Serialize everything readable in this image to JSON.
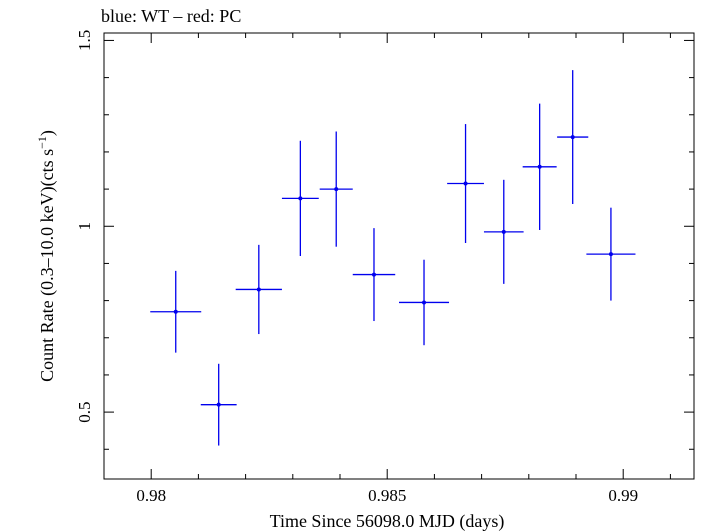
{
  "chart_data": {
    "type": "scatter",
    "title": "blue: WT – red: PC",
    "xlabel": "Time Since 56098.0 MJD (days)",
    "ylabel_main": "Count Rate (0.3–10.0 keV)(cts s",
    "ylabel_sup": "−1",
    "ylabel_close": ")",
    "xlim": [
      0.979,
      0.9915
    ],
    "ylim": [
      0.32,
      1.52
    ],
    "x_ticks": [
      0.98,
      0.985,
      0.99
    ],
    "x_tick_labels": [
      "0.98",
      "0.985",
      "0.99"
    ],
    "y_ticks": [
      0.5,
      1.0,
      1.5
    ],
    "y_tick_labels": [
      "0.5",
      "1",
      "1.5"
    ],
    "series": [
      {
        "color": "#0000ee",
        "points": [
          {
            "x": 0.98052,
            "xerr": 0.00054,
            "y": 0.77,
            "yerr": 0.11
          },
          {
            "x": 0.98143,
            "xerr": 0.00038,
            "y": 0.52,
            "yerr": 0.11
          },
          {
            "x": 0.98228,
            "xerr": 0.00049,
            "y": 0.83,
            "yerr": 0.12
          },
          {
            "x": 0.98316,
            "xerr": 0.00039,
            "y": 1.075,
            "yerr": 0.155
          },
          {
            "x": 0.98392,
            "xerr": 0.00035,
            "y": 1.1,
            "yerr": 0.155
          },
          {
            "x": 0.98472,
            "xerr": 0.00045,
            "y": 0.87,
            "yerr": 0.125
          },
          {
            "x": 0.98578,
            "xerr": 0.00053,
            "y": 0.795,
            "yerr": 0.115
          },
          {
            "x": 0.98666,
            "xerr": 0.00039,
            "y": 1.115,
            "yerr": 0.16
          },
          {
            "x": 0.98747,
            "xerr": 0.00042,
            "y": 0.985,
            "yerr": 0.14
          },
          {
            "x": 0.98823,
            "xerr": 0.00036,
            "y": 1.16,
            "yerr": 0.17
          },
          {
            "x": 0.98893,
            "xerr": 0.00033,
            "y": 1.24,
            "yerr": 0.18
          },
          {
            "x": 0.98974,
            "xerr": 0.00052,
            "y": 0.925,
            "yerr": 0.125
          }
        ]
      }
    ]
  }
}
